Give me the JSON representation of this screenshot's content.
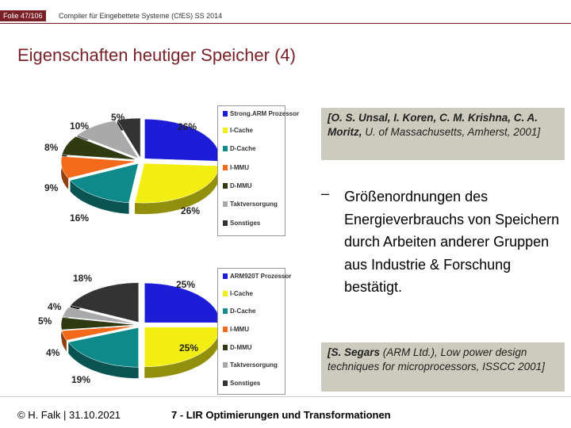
{
  "header": {
    "slide_number": "Folie 47/106",
    "course": "Compiler für Eingebettete Systeme (CfES) SS 2014",
    "accent_color": "#7a1f26"
  },
  "title": "Eigenschaften heutiger Speicher (4)",
  "charts": [
    {
      "legend": [
        {
          "label": "Strong.ARM Prozessor",
          "color": "#1d1dd8"
        },
        {
          "label": "I-Cache",
          "color": "#f2ee12"
        },
        {
          "label": "D-Cache",
          "color": "#0f8a8a"
        },
        {
          "label": "I-MMU",
          "color": "#f36a1a"
        },
        {
          "label": "D-MMU",
          "color": "#2f3a10"
        },
        {
          "label": "Taktversorgung",
          "color": "#a9a9a9"
        },
        {
          "label": "Sonstiges",
          "color": "#333333"
        }
      ],
      "labels": [
        "26%",
        "26%",
        "16%",
        "9%",
        "8%",
        "10%",
        "5%"
      ],
      "values": [
        26,
        26,
        16,
        9,
        8,
        10,
        5
      ]
    },
    {
      "legend": [
        {
          "label": "ARM920T Prozessor",
          "color": "#1d1dd8"
        },
        {
          "label": "I-Cache",
          "color": "#f2ee12"
        },
        {
          "label": "D-Cache",
          "color": "#0f8a8a"
        },
        {
          "label": "I-MMU",
          "color": "#f36a1a"
        },
        {
          "label": "D-MMU",
          "color": "#2f3a10"
        },
        {
          "label": "Taktversorgung",
          "color": "#a9a9a9"
        },
        {
          "label": "Sonstiges",
          "color": "#333333"
        }
      ],
      "labels": [
        "25%",
        "25%",
        "19%",
        "4%",
        "5%",
        "4%",
        "18%"
      ],
      "values": [
        25,
        25,
        19,
        4,
        5,
        4,
        18
      ]
    }
  ],
  "citations": {
    "first_authors": "[O. S. Unsal, I. Koren, C. M. Krishna, C. A. Moritz,",
    "first_rest": " U. of Massachusetts, Amherst, 2001]",
    "second_authors": "[S. Segars",
    "second_rest": " (ARM Ltd.), Low power design techniques for microprocessors, ISSCC 2001]"
  },
  "bullet": {
    "dash": "–",
    "text": "Größenordnungen des Energieverbrauchs von Speichern durch Arbeiten anderer Gruppen aus Industrie & Forschung bestätigt."
  },
  "footer": {
    "author_date": "© H. Falk | 31.10.2021",
    "chapter": "7 - LIR Optimierungen und Transformationen"
  }
}
